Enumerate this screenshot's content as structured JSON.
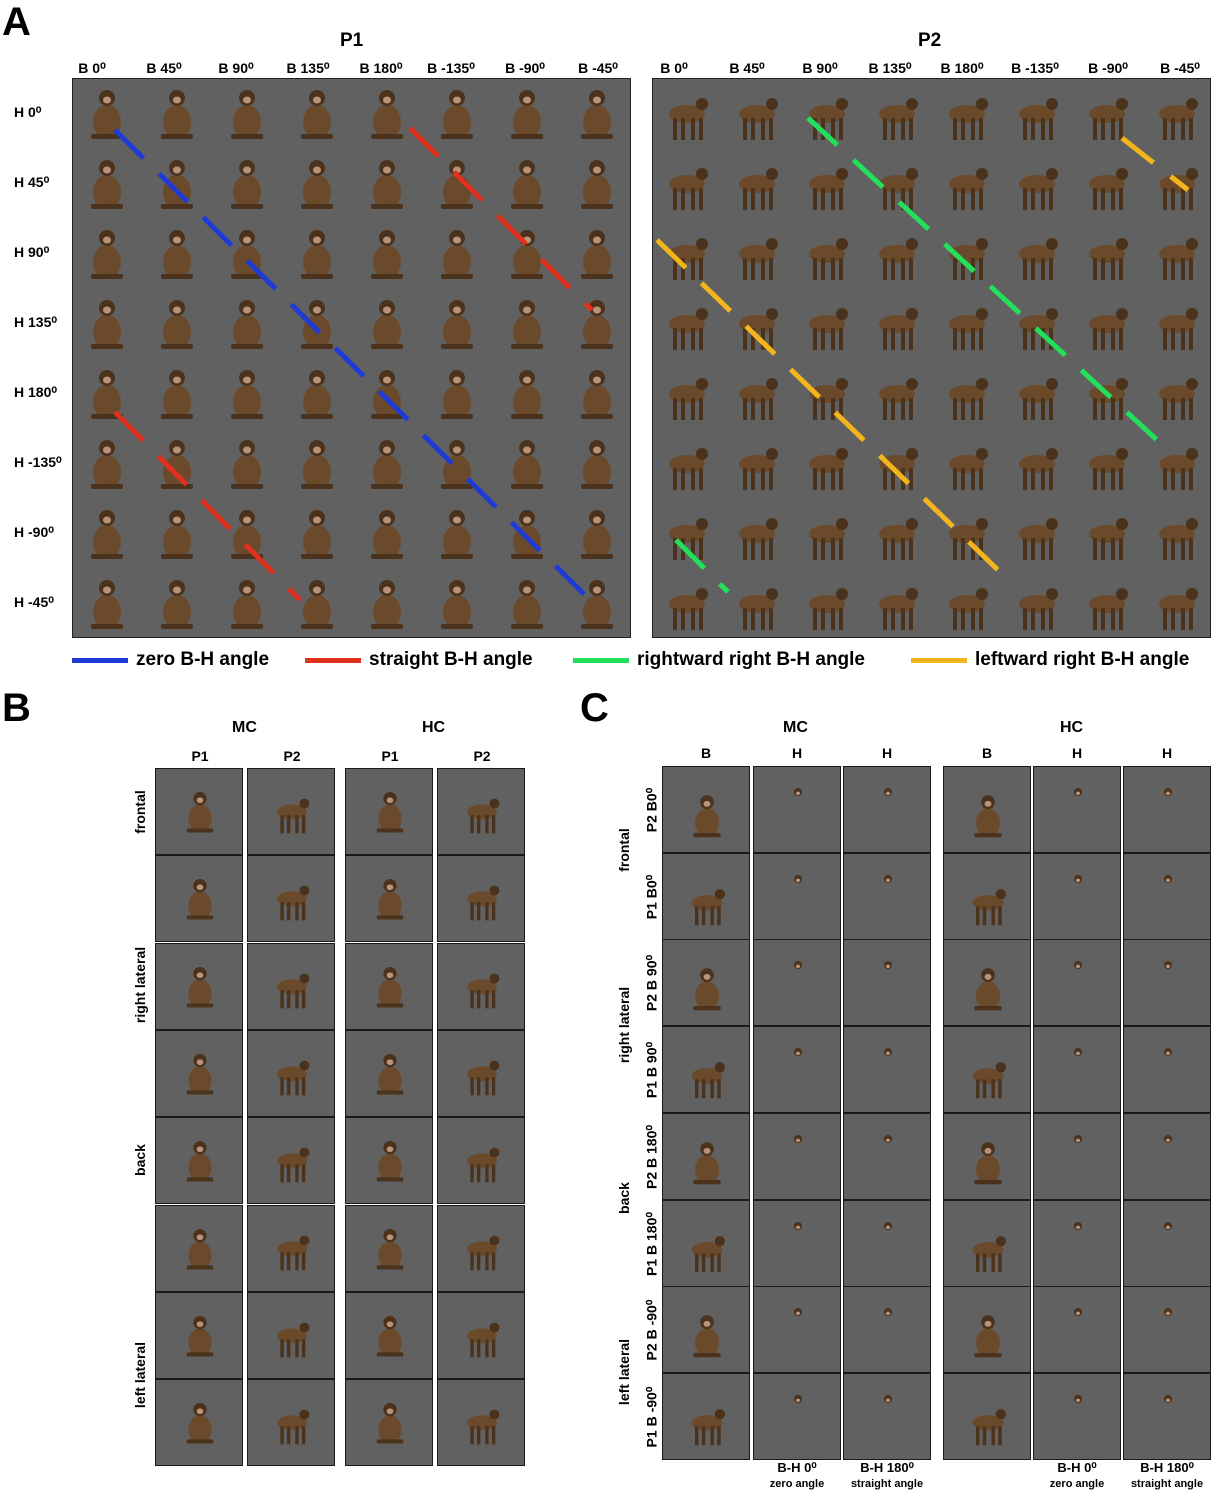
{
  "panels": {
    "a": "A",
    "b": "B",
    "c": "C"
  },
  "panel_a": {
    "p1_title": "P1",
    "p2_title": "P2",
    "columns": [
      "B 0⁰",
      "B 45⁰",
      "B 90⁰",
      "B 135⁰",
      "B 180⁰",
      "B -135⁰",
      "B -90⁰",
      "B -45⁰"
    ],
    "rows": [
      "H 0⁰",
      "H 45⁰",
      "H 90⁰",
      "H 135⁰",
      "H 180⁰",
      "H -135⁰",
      "H -90⁰",
      "H -45⁰"
    ],
    "legend": [
      {
        "label": "zero B-H angle",
        "color": "#1f3bd6"
      },
      {
        "label": "straight B-H angle",
        "color": "#e0301e"
      },
      {
        "label": "rightward right B-H angle",
        "color": "#22e05a"
      },
      {
        "label": "leftward right B-H angle",
        "color": "#f2b51c"
      }
    ]
  },
  "panel_b": {
    "groups": [
      "MC",
      "HC"
    ],
    "subcols": [
      "P1",
      "P2",
      "P1",
      "P2"
    ],
    "row_labels": [
      "frontal",
      "right lateral",
      "back",
      "left lateral"
    ]
  },
  "panel_c": {
    "groups": [
      "MC",
      "HC"
    ],
    "subcols": [
      "B",
      "H",
      "H",
      "B",
      "H",
      "H"
    ],
    "row_labels": [
      "P2 B0⁰",
      "P1 B0⁰",
      "P2 B 90⁰",
      "P1 B 90⁰",
      "P2 B 180⁰",
      "P1 B 180⁰",
      "P2 B -90⁰",
      "P1 B -90⁰"
    ],
    "group_labels": [
      "frontal",
      "right lateral",
      "back",
      "left lateral"
    ],
    "footers": [
      {
        "line1": "B-H 0⁰",
        "line2": "zero angle"
      },
      {
        "line1": "B-H 180⁰",
        "line2": "straight angle"
      },
      {
        "line1": "B-H 0⁰",
        "line2": "zero angle"
      },
      {
        "line1": "B-H 180⁰",
        "line2": "straight angle"
      }
    ]
  },
  "colors": {
    "background": "#616161",
    "monkey": "#6b4a2c"
  }
}
